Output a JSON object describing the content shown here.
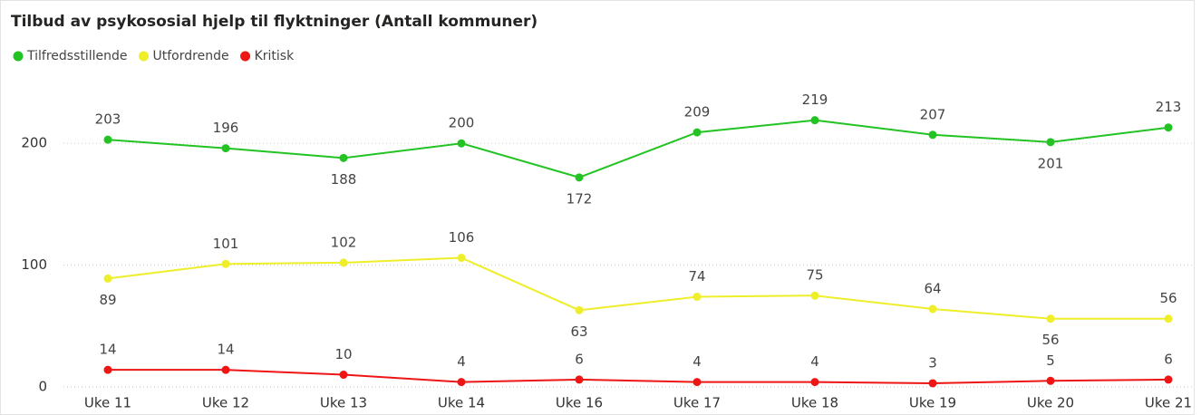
{
  "chart_data": {
    "type": "line",
    "title": "Tilbud av psykososial hjelp til flyktninger (Antall kommuner)",
    "categories": [
      "Uke 11",
      "Uke 12",
      "Uke 13",
      "Uke 14",
      "Uke 16",
      "Uke 17",
      "Uke 18",
      "Uke 19",
      "Uke 20",
      "Uke 21"
    ],
    "series": [
      {
        "name": "Tilfredsstillende",
        "color": "#22c322",
        "values": [
          203,
          196,
          188,
          200,
          172,
          209,
          219,
          207,
          201,
          213
        ]
      },
      {
        "name": "Utfordrende",
        "color": "#eeee2a",
        "values": [
          89,
          101,
          102,
          106,
          63,
          74,
          75,
          64,
          56,
          56
        ]
      },
      {
        "name": "Kritisk",
        "color": "#ee1515",
        "values": [
          14,
          14,
          10,
          4,
          6,
          4,
          4,
          3,
          5,
          6
        ]
      }
    ],
    "ylim": [
      0,
      250
    ],
    "yticks": [
      0,
      100,
      200
    ],
    "grid": true
  }
}
